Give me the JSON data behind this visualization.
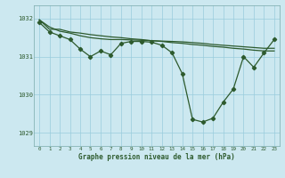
{
  "xlabel": "Graphe pression niveau de la mer (hPa)",
  "bg_color": "#cce8f0",
  "grid_color": "#99ccdd",
  "line_color": "#2d5a2d",
  "ylim": [
    1028.65,
    1032.35
  ],
  "yticks": [
    1029,
    1030,
    1031,
    1032
  ],
  "xlim": [
    -0.5,
    23.5
  ],
  "x_ticks": [
    0,
    1,
    2,
    3,
    4,
    5,
    6,
    7,
    8,
    9,
    10,
    11,
    12,
    13,
    14,
    15,
    16,
    17,
    18,
    19,
    20,
    21,
    22,
    23
  ],
  "series_main": [
    1031.9,
    1031.65,
    1031.55,
    1031.45,
    1031.2,
    1031.0,
    1031.15,
    1031.05,
    1031.35,
    1031.4,
    1031.4,
    1031.38,
    1031.3,
    1031.1,
    1030.55,
    1029.35,
    1029.28,
    1029.38,
    1029.8,
    1030.15,
    1031.0,
    1030.72,
    1031.1,
    1031.45
  ],
  "series_line1": [
    1031.97,
    1031.72,
    1031.72,
    1031.65,
    1031.62,
    1031.58,
    1031.55,
    1031.52,
    1031.5,
    1031.47,
    1031.45,
    1031.42,
    1031.4,
    1031.37,
    1031.35,
    1031.32,
    1031.3,
    1031.27,
    1031.25,
    1031.22,
    1031.2,
    1031.17,
    1031.15,
    1031.15
  ],
  "series_line2": [
    1031.97,
    1031.78,
    1031.67,
    1031.62,
    1031.55,
    1031.5,
    1031.47,
    1031.45,
    1031.45,
    1031.44,
    1031.43,
    1031.42,
    1031.41,
    1031.4,
    1031.39,
    1031.37,
    1031.35,
    1031.32,
    1031.3,
    1031.28,
    1031.26,
    1031.24,
    1031.22,
    1031.22
  ]
}
